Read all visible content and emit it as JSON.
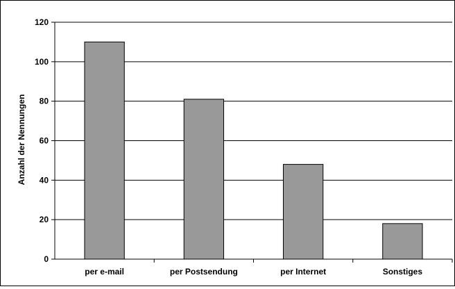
{
  "chart_data": {
    "type": "bar",
    "title": "",
    "xlabel": "",
    "ylabel": "Anzahl der Nennungen",
    "categories": [
      "per e-mail",
      "per Postsendung",
      "per Internet",
      "Sonstiges"
    ],
    "values": [
      110,
      81,
      48,
      18
    ],
    "ylim": [
      0,
      120
    ],
    "yticks": [
      "0",
      "20",
      "40",
      "60",
      "80",
      "100",
      "120"
    ],
    "grid": true,
    "legend": "none",
    "bar_color": "#999999",
    "bar_outline_color": "#000000"
  }
}
